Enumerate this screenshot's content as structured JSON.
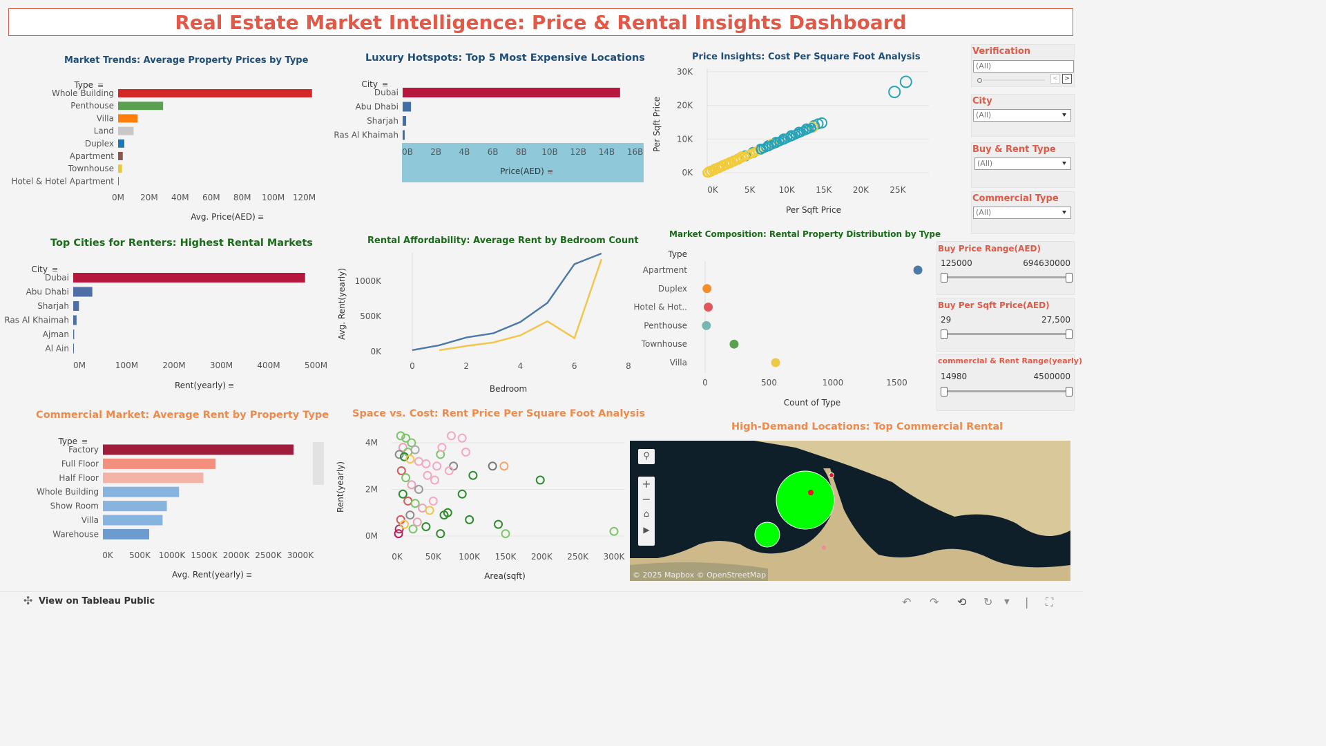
{
  "dashboard": {
    "title": "Real Estate Market Intelligence: Price & Rental Insights Dashboard",
    "accent": "#e05a47"
  },
  "charts": {
    "c1": {
      "title": "Market Trends: Average Property Prices by Type",
      "title_color": "#1f4e79",
      "dim": "Type",
      "xlabel": "Avg. Price(AED)",
      "ticks": [
        "0M",
        "20M",
        "40M",
        "60M",
        "80M",
        "100M",
        "120M"
      ]
    },
    "c2": {
      "title": "Luxury Hotspots: Top 5 Most Expensive Locations",
      "title_color": "#1f4e79",
      "dim": "City",
      "xlabel": "Price(AED)",
      "ticks": [
        "0B",
        "2B",
        "4B",
        "6B",
        "8B",
        "10B",
        "12B",
        "14B",
        "16B"
      ]
    },
    "c3": {
      "title": "Price Insights: Cost Per Square Foot Analysis",
      "title_color": "#1f4e79",
      "xlabel": "Per Sqft Price",
      "ylabel": "Per Sqft Price",
      "xticks": [
        "0K",
        "5K",
        "10K",
        "15K",
        "20K",
        "25K"
      ],
      "yticks": [
        "0K",
        "10K",
        "20K",
        "30K"
      ]
    },
    "c4": {
      "title": "Top Cities for Renters: Highest Rental Markets",
      "title_color": "#1a6b1a",
      "dim": "City",
      "xlabel": "Rent(yearly)",
      "ticks": [
        "0M",
        "100M",
        "200M",
        "300M",
        "400M",
        "500M"
      ]
    },
    "c5": {
      "title": "Rental Affordability: Average Rent by Bedroom Count",
      "title_color": "#1a6b1a",
      "xlabel": "Bedroom",
      "ylabel": "Avg. Rent(yearly)",
      "xticks": [
        "0",
        "2",
        "4",
        "6",
        "8"
      ],
      "yticks": [
        "0K",
        "500K",
        "1000K"
      ]
    },
    "c6": {
      "title": "Market Composition: Rental Property Distribution by Type",
      "title_color": "#1a6b1a",
      "dim": "Type",
      "xlabel": "Count of Type",
      "xticks": [
        "0",
        "500",
        "1000",
        "1500"
      ]
    },
    "c7": {
      "title": "Commercial Market: Average Rent by Property Type",
      "title_color": "#f08a4b",
      "dim": "Type",
      "xlabel": "Avg. Rent(yearly)",
      "ticks": [
        "0K",
        "500K",
        "1000K",
        "1500K",
        "2000K",
        "2500K",
        "3000K"
      ]
    },
    "c8": {
      "title": "Space vs. Cost: Rent Price Per Square Foot Analysis",
      "title_color": "#f08a4b",
      "xlabel": "Area(sqft)",
      "ylabel": "Rent(yearly)",
      "xticks": [
        "0K",
        "50K",
        "100K",
        "150K",
        "200K",
        "250K",
        "300K"
      ],
      "yticks": [
        "0M",
        "2M",
        "4M"
      ]
    },
    "c9": {
      "title": "High-Demand Locations: Top Commercial Rental",
      "title_color": "#f08a4b",
      "attribution": "© 2025 Mapbox  © OpenStreetMap"
    }
  },
  "chart_data": [
    {
      "id": "c1",
      "type": "bar",
      "categories": [
        "Whole Building",
        "Penthouse",
        "Villa",
        "Land",
        "Duplex",
        "Apartment",
        "Townhouse",
        "Hotel & Hotel Apartment"
      ],
      "values": [
        125,
        29,
        12.5,
        10,
        4,
        3,
        2.5,
        0.4
      ],
      "colors": [
        "#d62728",
        "#59a14f",
        "#ff7f0e",
        "#c7c7c7",
        "#1f77b4",
        "#8c564b",
        "#e8c93b",
        "#2ca02c"
      ],
      "xlim": [
        0,
        130
      ],
      "unit": "M"
    },
    {
      "id": "c2",
      "type": "bar",
      "categories": [
        "Dubai",
        "Abu Dhabi",
        "Sharjah",
        "Ras Al Khaimah"
      ],
      "values": [
        15.6,
        0.6,
        0.25,
        0.15
      ],
      "colors": [
        "#b5173d",
        "#3f6fa4",
        "#3f6fa4",
        "#3f6fa4"
      ],
      "xlim": [
        0,
        16.5
      ],
      "unit": "B"
    },
    {
      "id": "c3",
      "type": "scatter",
      "xlim": [
        0,
        29000
      ],
      "ylim": [
        0,
        31000
      ],
      "clusters": [
        {
          "color": "#29a3b8",
          "points": [
            [
              26000,
              27000
            ],
            [
              24500,
              24000
            ],
            [
              15000,
              14800
            ],
            [
              14500,
              14500
            ],
            [
              14000,
              14000
            ],
            [
              13000,
              13000
            ],
            [
              12000,
              12000
            ],
            [
              11000,
              11000
            ],
            [
              10000,
              10000
            ],
            [
              9000,
              9000
            ],
            [
              8000,
              8000
            ],
            [
              7000,
              7000
            ],
            [
              6000,
              6000
            ],
            [
              5000,
              5000
            ],
            [
              4000,
              4000
            ],
            [
              3000,
              3000
            ],
            [
              2000,
              2000
            ],
            [
              1000,
              1000
            ]
          ]
        },
        {
          "color": "#f2cb3b",
          "points": [
            [
              13800,
              13500
            ],
            [
              8500,
              8500
            ],
            [
              4500,
              4700
            ],
            [
              4000,
              4000
            ],
            [
              3500,
              3500
            ],
            [
              3000,
              3000
            ],
            [
              2500,
              2500
            ],
            [
              2000,
              2000
            ],
            [
              1500,
              1500
            ],
            [
              1000,
              1000
            ],
            [
              500,
              500
            ],
            [
              200,
              200
            ]
          ]
        }
      ]
    },
    {
      "id": "c4",
      "type": "bar",
      "categories": [
        "Dubai",
        "Abu Dhabi",
        "Sharjah",
        "Ras Al Khaimah",
        "Ajman",
        "Al Ain"
      ],
      "values": [
        485,
        40,
        12,
        7,
        2,
        1
      ],
      "colors": [
        "#b5173d",
        "#4e6fa6",
        "#4e6fa6",
        "#4e6fa6",
        "#4e6fa6",
        "#4e6fa6"
      ],
      "xlim": [
        0,
        510
      ],
      "unit": "M"
    },
    {
      "id": "c5",
      "type": "line",
      "x": [
        0,
        1,
        2,
        3,
        4,
        5,
        6,
        7
      ],
      "series": [
        {
          "color": "#4e79a7",
          "values": [
            20,
            90,
            200,
            260,
            420,
            690,
            1240,
            1390
          ]
        },
        {
          "color": "#f2c64c",
          "values": [
            null,
            20,
            80,
            130,
            230,
            430,
            190,
            1310
          ]
        }
      ],
      "xlim": [
        0,
        8
      ],
      "ylim": [
        0,
        1400
      ]
    },
    {
      "id": "c6",
      "type": "scatter",
      "categories": [
        "Apartment",
        "Duplex",
        "Hotel & Hot..",
        "Penthouse",
        "Townhouse",
        "Villa"
      ],
      "values": [
        1690,
        15,
        25,
        10,
        230,
        560
      ],
      "colors": [
        "#4e79a7",
        "#f28e2b",
        "#e15759",
        "#76b7b2",
        "#59a14f",
        "#edc948"
      ],
      "xlim": [
        0,
        1750
      ]
    },
    {
      "id": "c7",
      "type": "bar",
      "categories": [
        "Factory",
        "Full Floor",
        "Half Floor",
        "Whole Building",
        "Show Room",
        "Villa",
        "Warehouse"
      ],
      "values": [
        3130,
        1850,
        1650,
        1250,
        1050,
        980,
        760
      ],
      "colors": [
        "#a01c3c",
        "#f28f7d",
        "#f4b3a7",
        "#86b4df",
        "#86b4df",
        "#86b4df",
        "#6b9bcf"
      ],
      "xlim": [
        0,
        3300
      ],
      "unit": "K"
    },
    {
      "id": "c8",
      "type": "scatter",
      "xlim": [
        0,
        300000
      ],
      "ylim": [
        -200000,
        4800000
      ],
      "points": [
        [
          5000,
          4300000,
          "#7ec46b"
        ],
        [
          12000,
          4200000,
          "#7ec46b"
        ],
        [
          20000,
          4000000,
          "#7ec46b"
        ],
        [
          8000,
          3800000,
          "#e9a3b8"
        ],
        [
          15000,
          3600000,
          "#7ec46b"
        ],
        [
          25000,
          3700000,
          "#aaa"
        ],
        [
          3000,
          3500000,
          "#8a8a8a"
        ],
        [
          10000,
          3400000,
          "#2e8b2e"
        ],
        [
          18000,
          3300000,
          "#f2c64c"
        ],
        [
          30000,
          3200000,
          "#f4a9c0"
        ],
        [
          40000,
          3100000,
          "#f4a9c0"
        ],
        [
          55000,
          3000000,
          "#f4a9c0"
        ],
        [
          75000,
          4300000,
          "#f4a9c0"
        ],
        [
          90000,
          4200000,
          "#f4a9c0"
        ],
        [
          95000,
          3600000,
          "#f4a9c0"
        ],
        [
          60000,
          3500000,
          "#7ec46b"
        ],
        [
          78000,
          3000000,
          "#888"
        ],
        [
          105000,
          2600000,
          "#2e8b2e"
        ],
        [
          132000,
          3000000,
          "#777"
        ],
        [
          148000,
          3000000,
          "#f4a46a"
        ],
        [
          198000,
          2400000,
          "#2e8b2e"
        ],
        [
          90000,
          1800000,
          "#2e8b2e"
        ],
        [
          6000,
          2800000,
          "#d65b5b"
        ],
        [
          12000,
          2500000,
          "#7ec46b"
        ],
        [
          20000,
          2200000,
          "#e9a3b8"
        ],
        [
          30000,
          2000000,
          "#999"
        ],
        [
          8000,
          1800000,
          "#2e8b2e"
        ],
        [
          15000,
          1500000,
          "#d65b5b"
        ],
        [
          25000,
          1400000,
          "#7ec46b"
        ],
        [
          35000,
          1200000,
          "#e9a3b8"
        ],
        [
          45000,
          1100000,
          "#f2c64c"
        ],
        [
          65000,
          900000,
          "#2e8b2e"
        ],
        [
          70000,
          1000000,
          "#2e8b2e"
        ],
        [
          100000,
          700000,
          "#2e8b2e"
        ],
        [
          140000,
          500000,
          "#2e8b2e"
        ],
        [
          150000,
          100000,
          "#7ec46b"
        ],
        [
          60000,
          100000,
          "#2e8b2e"
        ],
        [
          40000,
          400000,
          "#2e8b2e"
        ],
        [
          300000,
          200000,
          "#7ec46b"
        ],
        [
          5000,
          700000,
          "#d65b5b"
        ],
        [
          3000,
          300000,
          "#9b3b6b"
        ],
        [
          2000,
          100000,
          "#c2185b"
        ],
        [
          10000,
          500000,
          "#f2c64c"
        ],
        [
          18000,
          900000,
          "#8a8a8a"
        ],
        [
          22000,
          300000,
          "#7ec46b"
        ],
        [
          28000,
          600000,
          "#e9a3b8"
        ],
        [
          50000,
          1500000,
          "#f4a9c0"
        ],
        [
          42000,
          2600000,
          "#f4a9c0"
        ],
        [
          52000,
          2400000,
          "#f4a9c0"
        ],
        [
          62000,
          3800000,
          "#f4a9c0"
        ],
        [
          72000,
          2800000,
          "#f4a9c0"
        ]
      ]
    }
  ],
  "filters": {
    "verification": {
      "label": "Verification",
      "value": "(All)"
    },
    "city": {
      "label": "City",
      "value": "(All)"
    },
    "buy_rent": {
      "label": "Buy & Rent Type",
      "value": "(All)"
    },
    "commercial": {
      "label": "Commercial Type",
      "value": "(All)"
    },
    "buy_price": {
      "label": "Buy Price Range(AED)",
      "min": "125000",
      "max": "694630000"
    },
    "buy_sqft": {
      "label": "Buy Per Sqft Price(AED)",
      "min": "29",
      "max": "27,500"
    },
    "comm_rent": {
      "label": "commercial & Rent  Range(yearly)",
      "min": "14980",
      "max": "4500000"
    }
  },
  "footer": {
    "view_label": "View on Tableau Public"
  }
}
